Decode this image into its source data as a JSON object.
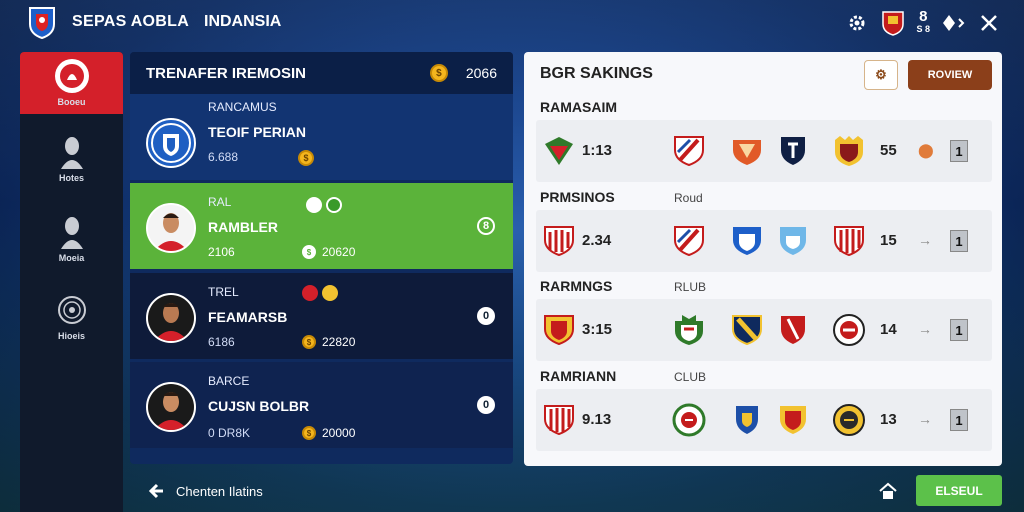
{
  "header": {
    "title": "SEPAS AOBLA",
    "subtitle": "INDANSIA",
    "top_icons": [
      "settings-gear-icon",
      "club-crest-icon",
      "bell-icon",
      "close-icon"
    ],
    "count_top": "8",
    "count_bottom": "S 8"
  },
  "sidebar": {
    "items": [
      {
        "label": "Booeu",
        "icon": "club-badge-icon",
        "active": true
      },
      {
        "label": "Hotes",
        "icon": "player-silhouette-icon",
        "active": false
      },
      {
        "label": "Moeia",
        "icon": "player-silhouette-icon",
        "active": false
      },
      {
        "label": "Hioeis",
        "icon": "coin-emblem-icon",
        "active": false
      }
    ]
  },
  "transfer": {
    "title": "TRENAFER IREMOSIN",
    "balance": "2066",
    "players": [
      {
        "small": "RANCAMUS",
        "name": "TEOIF PERIAN",
        "meta": "6.688",
        "price": "",
        "badge": "",
        "avatar": "club-crest"
      },
      {
        "small": "RAL",
        "name": "RAMBLER",
        "meta": "2106",
        "price": "20620",
        "badge": "8",
        "avatar": "player"
      },
      {
        "small": "TREL",
        "name": "FEAMARSB",
        "meta": "6186",
        "price": "22820",
        "badge": "0",
        "avatar": "player"
      },
      {
        "small": "BARCE",
        "name": "CUJSN BOLBR",
        "meta": "0 DR8K",
        "price": "20000",
        "badge": "0",
        "avatar": "player"
      }
    ]
  },
  "rankings": {
    "title": "BGR SAKINGS",
    "button_label": "ROVIEW",
    "groups": [
      {
        "label": "RAMASAIM",
        "sub": "",
        "score": "1:13",
        "num": "55",
        "arrow": "⬤"
      },
      {
        "label": "PRMSINOS",
        "sub": "Roud",
        "score": "2.34",
        "num": "15",
        "arrow": "→"
      },
      {
        "label": "RARMNGS",
        "sub": "RLUB",
        "score": "3:15",
        "num": "14",
        "arrow": "→"
      },
      {
        "label": "RAMRIANN",
        "sub": "CLUB",
        "score": "9.13",
        "num": "13",
        "arrow": "→"
      }
    ],
    "box_value": "1"
  },
  "footer": {
    "back_label": "Chenten Ilatins",
    "result_label": "ELSEUL"
  },
  "colors": {
    "accent_red": "#d4202a",
    "accent_green": "#5bb33a",
    "accent_brown": "#8b3f1a",
    "panel_navy": "#0f2a5e"
  }
}
